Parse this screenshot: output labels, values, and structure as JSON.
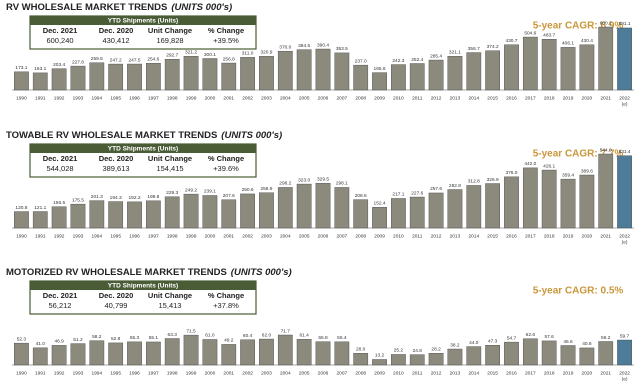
{
  "chart_data": [
    {
      "type": "bar",
      "title": "RV WHOLESALE MARKET TRENDS",
      "title_units": "(UNITS 000's)",
      "table": {
        "title": "YTD Shipments (Units)",
        "headers": [
          "Dec. 2021",
          "Dec. 2020",
          "Unit Change",
          "% Change"
        ],
        "row": [
          "600,240",
          "430,412",
          "169,828",
          "+39.5%"
        ]
      },
      "annotation": "5-year CAGR: 6.9%",
      "categories": [
        "1990",
        "1991",
        "1992",
        "1993",
        "1994",
        "1995",
        "1996",
        "1997",
        "1998",
        "1999",
        "2000",
        "2001",
        "2002",
        "2003",
        "2004",
        "2005",
        "2006",
        "2007",
        "2008",
        "2009",
        "2010",
        "2011",
        "2012",
        "2013",
        "2014",
        "2015",
        "2016",
        "2017",
        "2018",
        "2019",
        "2020",
        "2021",
        "2022"
      ],
      "category_note": "(e)",
      "values": [
        173.1,
        163.1,
        203.4,
        227.8,
        259.5,
        247.2,
        247.5,
        254.6,
        292.7,
        321.2,
        300.1,
        256.8,
        311.0,
        320.9,
        370.0,
        384.5,
        390.4,
        353.5,
        237.0,
        165.6,
        242.3,
        252.4,
        285.4,
        321.1,
        356.7,
        374.2,
        430.7,
        504.6,
        483.7,
        406.1,
        430.4,
        600.2,
        591.1
      ],
      "value_labels": [
        "173.1",
        "163.1",
        "203.4",
        "227.8",
        "259.5",
        "247.2",
        "247.5",
        "254.6",
        "292.7",
        "321.2",
        "300.1",
        "256.8",
        "311.0",
        "320.9",
        "370.0",
        "384.5",
        "390.4",
        "353.5",
        "237.0",
        "165.6",
        "242.3",
        "252.4",
        "285.4",
        "321.1",
        "356.7",
        "374.2",
        "430.7",
        "504.6",
        "483.7",
        "406.1",
        "430.4",
        "600.2",
        "591.1"
      ],
      "color": "#8b8a7c",
      "highlight_color": "#4d7b98"
    },
    {
      "type": "bar",
      "title": "TOWABLE RV WHOLESALE MARKET TRENDS",
      "title_units": "(UNITS 000's)",
      "table": {
        "title": "YTD Shipments (Units)",
        "headers": [
          "Dec. 2021",
          "Dec. 2020",
          "Unit Change",
          "% Change"
        ],
        "row": [
          "544,028",
          "389,613",
          "154,415",
          "+39.6%"
        ]
      },
      "annotation": "5-year CAGR: 7.7%",
      "categories": [
        "1990",
        "1991",
        "1992",
        "1993",
        "1994",
        "1995",
        "1996",
        "1997",
        "1998",
        "1999",
        "2000",
        "2001",
        "2002",
        "2003",
        "2004",
        "2005",
        "2006",
        "2007",
        "2008",
        "2009",
        "2010",
        "2011",
        "2012",
        "2013",
        "2014",
        "2015",
        "2016",
        "2017",
        "2018",
        "2019",
        "2020",
        "2021",
        "2022"
      ],
      "category_note": "(e)",
      "values": [
        120.8,
        121.1,
        156.5,
        175.5,
        201.3,
        194.3,
        192.2,
        199.8,
        229.3,
        249.2,
        239.1,
        207.6,
        250.6,
        258.9,
        298.2,
        323.0,
        329.5,
        298.1,
        208.6,
        152.4,
        217.1,
        227.6,
        257.6,
        282.8,
        312.8,
        326.9,
        376.0,
        442.0,
        426.1,
        359.4,
        389.6,
        544.0,
        531.4
      ],
      "value_labels": [
        "120.8",
        "121.1",
        "156.5",
        "175.5",
        "201.3",
        "194.3",
        "192.2",
        "199.8",
        "229.3",
        "249.2",
        "239.1",
        "207.6",
        "250.6",
        "258.9",
        "298.2",
        "323.0",
        "329.5",
        "298.1",
        "208.6",
        "152.4",
        "217.1",
        "227.6",
        "257.6",
        "282.8",
        "312.8",
        "326.9",
        "376.0",
        "442.0",
        "426.1",
        "359.4",
        "389.6",
        "544.0",
        "531.4"
      ],
      "color": "#8b8a7c",
      "highlight_color": "#4d7b98"
    },
    {
      "type": "bar",
      "title": "MOTORIZED RV WHOLESALE MARKET TRENDS",
      "title_units": "(UNITS 000's)",
      "table": {
        "title": "YTD Shipments (Units)",
        "headers": [
          "Dec. 2021",
          "Dec. 2020",
          "Unit Change",
          "% Change"
        ],
        "row": [
          "56,212",
          "40,799",
          "15,413",
          "+37.8%"
        ]
      },
      "annotation": "5-year CAGR: 0.5%",
      "categories": [
        "1990",
        "1991",
        "1992",
        "1993",
        "1994",
        "1995",
        "1996",
        "1997",
        "1998",
        "1999",
        "2000",
        "2001",
        "2002",
        "2003",
        "2004",
        "2005",
        "2006",
        "2007",
        "2008",
        "2009",
        "2010",
        "2011",
        "2012",
        "2013",
        "2014",
        "2015",
        "2016",
        "2017",
        "2018",
        "2019",
        "2020",
        "2021",
        "2022"
      ],
      "category_note": "(e)",
      "values": [
        52.3,
        41.0,
        46.9,
        51.2,
        58.2,
        52.8,
        55.3,
        55.1,
        63.3,
        71.5,
        61.0,
        49.2,
        60.4,
        62.0,
        71.7,
        61.4,
        55.8,
        55.4,
        28.0,
        13.2,
        25.2,
        24.8,
        28.2,
        38.2,
        44.0,
        47.3,
        54.7,
        62.6,
        57.6,
        46.6,
        40.8,
        56.2,
        59.7
      ],
      "value_labels": [
        "52.3",
        "41.0",
        "46.9",
        "51.2",
        "58.2",
        "52.8",
        "55.3",
        "55.1",
        "63.3",
        "71.5",
        "61.0",
        "49.2",
        "60.4",
        "62.0",
        "71.7",
        "61.4",
        "55.8",
        "55.4",
        "28.0",
        "13.2",
        "25.2",
        "24.8",
        "28.2",
        "38.2",
        "44.0",
        "47.3",
        "54.7",
        "62.6",
        "57.6",
        "46.6",
        "40.8",
        "56.2",
        "59.7"
      ],
      "color": "#8b8a7c",
      "highlight_color": "#4d7b98"
    }
  ]
}
